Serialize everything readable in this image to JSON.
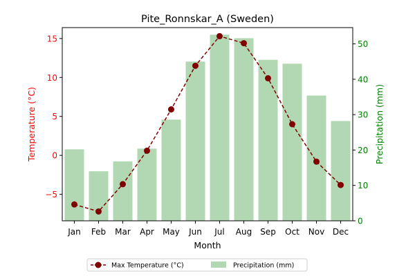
{
  "chart_data": {
    "type": "bar+line",
    "title": "Pite_Ronnskar_A (Sweden)",
    "xlabel": "Month",
    "ylabel_left": "Temperature (°C)",
    "ylabel_right": "Precipitation (mm)",
    "categories": [
      "Jan",
      "Feb",
      "Mar",
      "Apr",
      "May",
      "Jun",
      "Jul",
      "Aug",
      "Sep",
      "Oct",
      "Nov",
      "Dec"
    ],
    "left_axis": {
      "ylim": [
        -8.4,
        16.4
      ],
      "ticks": [
        -5,
        0,
        5,
        10,
        15
      ],
      "color": "#ff0000"
    },
    "right_axis": {
      "ylim": [
        0,
        54.6
      ],
      "ticks": [
        0,
        10,
        20,
        30,
        40,
        50
      ],
      "color": "#008000"
    },
    "series": [
      {
        "name": "Max Temperature (°C)",
        "kind": "line",
        "axis": "left",
        "color": "#800000",
        "values": [
          -6.3,
          -7.2,
          -3.7,
          0.6,
          5.9,
          11.5,
          15.3,
          14.4,
          9.9,
          4.0,
          -0.8,
          -3.8
        ]
      },
      {
        "name": "Precipitation (mm)",
        "kind": "bar",
        "axis": "right",
        "color": "#b1d8b2",
        "values": [
          20.2,
          14.0,
          16.8,
          20.4,
          28.6,
          45.0,
          52.6,
          51.6,
          45.5,
          44.4,
          35.4,
          28.2
        ]
      }
    ],
    "legend": {
      "placement": "bottom-center"
    }
  }
}
